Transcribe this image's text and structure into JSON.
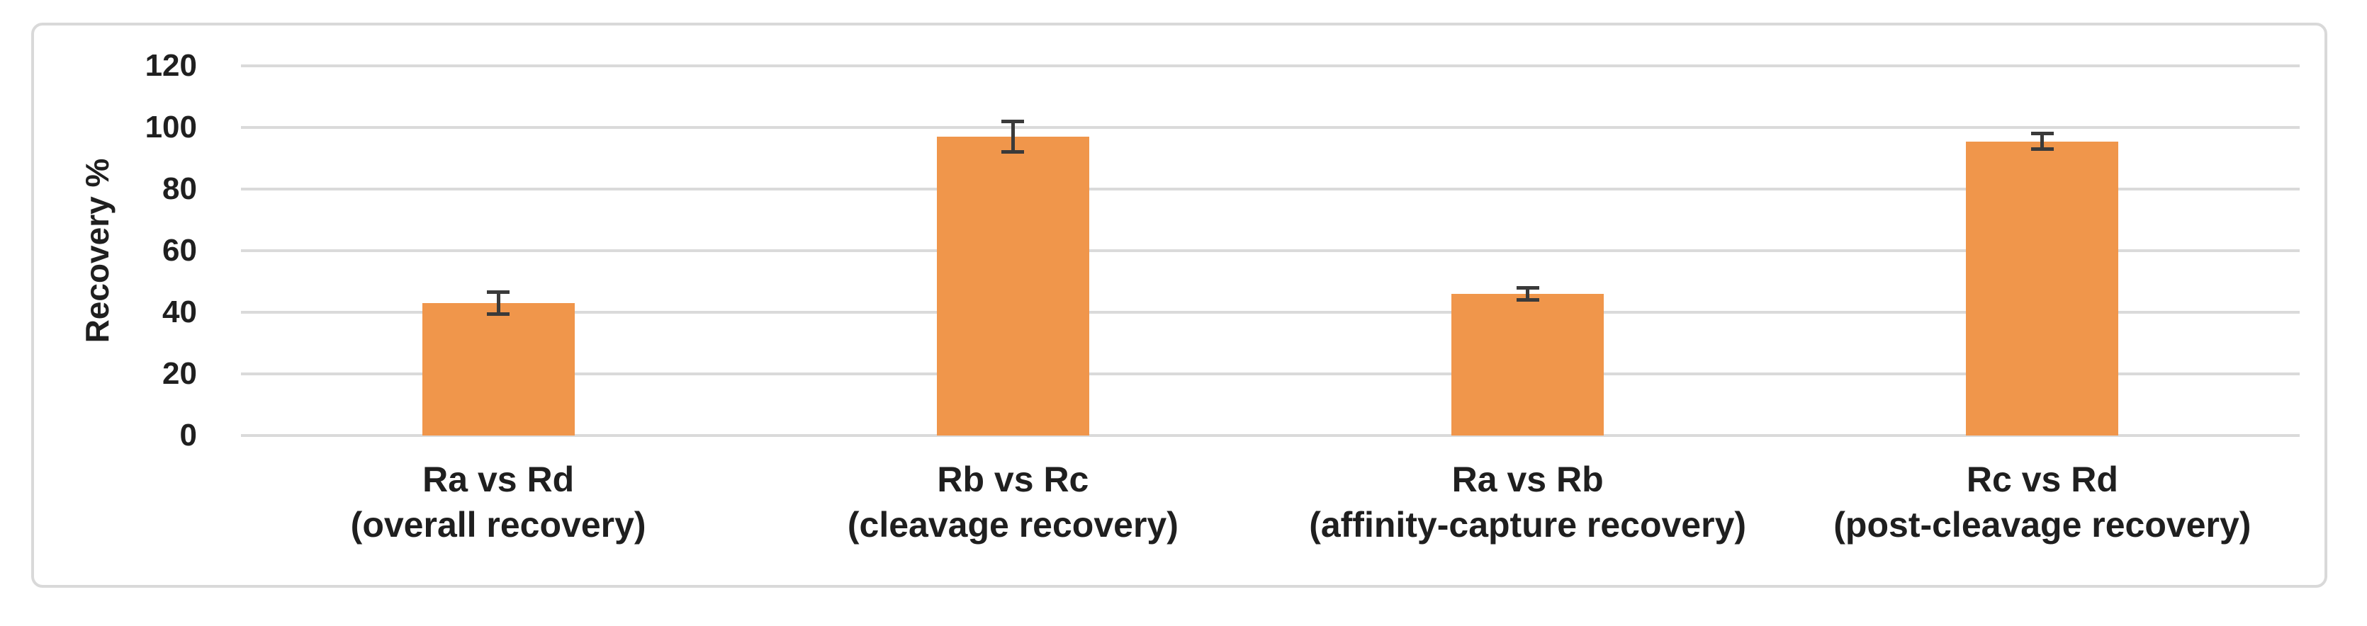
{
  "figure": {
    "background_color": "#ffffff",
    "frame_border_color": "#d9d9d9"
  },
  "chart_data": {
    "type": "bar",
    "title": "",
    "xlabel": "",
    "ylabel": "Recovery %",
    "ylim": [
      0,
      120
    ],
    "yticks": [
      0,
      20,
      40,
      60,
      80,
      100,
      120
    ],
    "grid": true,
    "legend": false,
    "categories": [
      "Ra vs Rd",
      "Rb vs Rc",
      "Ra vs Rb",
      "Rc vs Rd"
    ],
    "category_sublabels": [
      "(overall recovery)",
      "(cleavage recovery)",
      "(affinity-capture recovery)",
      "(post-cleavage recovery)"
    ],
    "series": [
      {
        "name": "Recovery %",
        "values": [
          43,
          97,
          46,
          95.5
        ],
        "error_bars": [
          3.5,
          5,
          2,
          2.5
        ]
      }
    ],
    "bar_color": "#F0964B",
    "error_bar_color": "#3a3a3a",
    "gridline_color": "#dadada",
    "text_color": "#1f1f1f"
  }
}
